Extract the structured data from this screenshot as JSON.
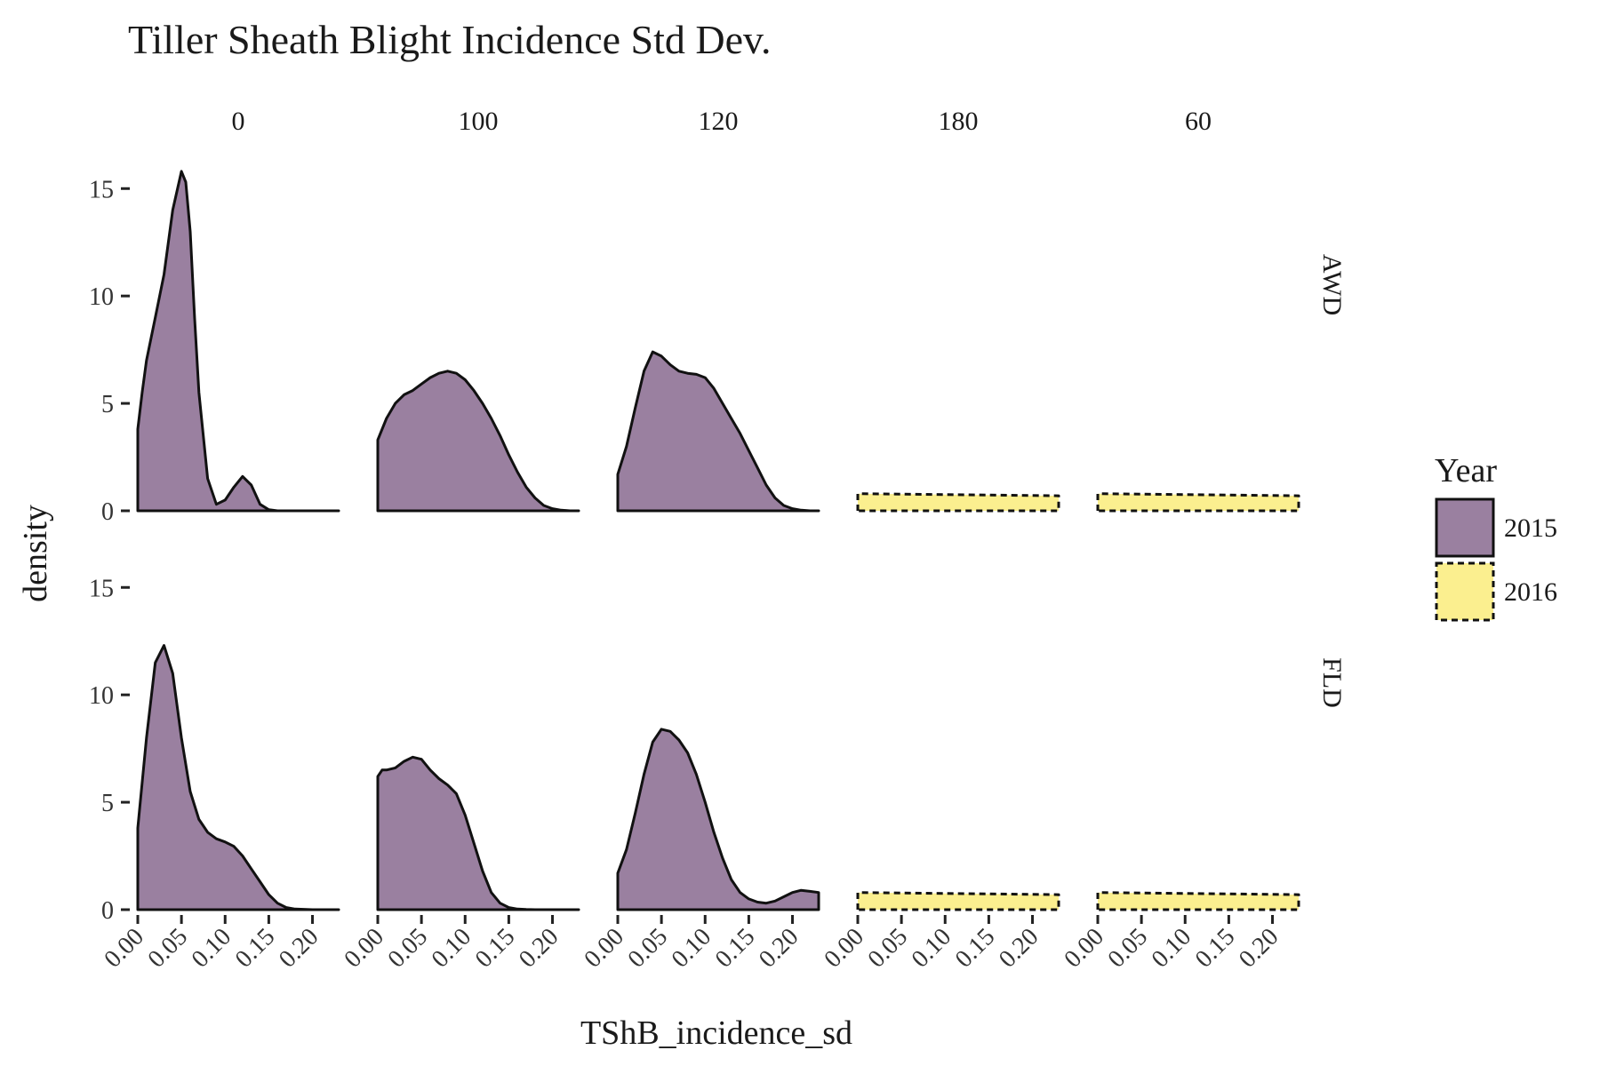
{
  "chart_data": {
    "type": "area",
    "title": "Tiller Sheath Blight Incidence Std Dev.",
    "xlabel": "TShB_incidence_sd",
    "ylabel": "density",
    "columns": [
      "0",
      "100",
      "120",
      "180",
      "60"
    ],
    "rows": [
      "AWD",
      "FLD"
    ],
    "xlim": [
      0,
      0.23
    ],
    "ylim": [
      0,
      16.5
    ],
    "x_ticks": [
      0.0,
      0.05,
      0.1,
      0.15,
      0.2
    ],
    "x_tick_labels": [
      "0.00",
      "0.05",
      "0.10",
      "0.15",
      "0.20"
    ],
    "y_ticks": [
      0,
      5,
      10,
      15
    ],
    "y_tick_labels": [
      "0",
      "5",
      "10",
      "15"
    ],
    "grid": false,
    "legend": {
      "title": "Year",
      "position": "right",
      "entries": [
        {
          "label": "2015",
          "fill": "#9a80a0",
          "stroke": "#111111",
          "dash": "solid"
        },
        {
          "label": "2016",
          "fill": "#fbef8f",
          "stroke": "#111111",
          "dash": "dashed"
        }
      ]
    },
    "panels": [
      {
        "row": "AWD",
        "col": "0",
        "year": "2015",
        "x": [
          0,
          0.005,
          0.01,
          0.02,
          0.03,
          0.04,
          0.05,
          0.055,
          0.06,
          0.065,
          0.07,
          0.08,
          0.09,
          0.1,
          0.11,
          0.12,
          0.13,
          0.14,
          0.15,
          0.16,
          0.18,
          0.2,
          0.23
        ],
        "y": [
          3.8,
          5.5,
          7,
          9,
          11,
          14,
          15.8,
          15.3,
          13,
          9,
          5.5,
          1.5,
          0.3,
          0.5,
          1.1,
          1.6,
          1.2,
          0.3,
          0.05,
          0,
          0,
          0,
          0
        ]
      },
      {
        "row": "AWD",
        "col": "100",
        "year": "2015",
        "x": [
          0,
          0.01,
          0.02,
          0.03,
          0.04,
          0.05,
          0.06,
          0.07,
          0.08,
          0.09,
          0.1,
          0.11,
          0.12,
          0.13,
          0.14,
          0.15,
          0.16,
          0.17,
          0.18,
          0.19,
          0.2,
          0.21,
          0.22,
          0.23
        ],
        "y": [
          3.3,
          4.3,
          5,
          5.4,
          5.6,
          5.9,
          6.2,
          6.4,
          6.5,
          6.4,
          6.1,
          5.6,
          5,
          4.3,
          3.5,
          2.6,
          1.8,
          1.1,
          0.6,
          0.25,
          0.1,
          0.03,
          0,
          0
        ]
      },
      {
        "row": "AWD",
        "col": "120",
        "year": "2015",
        "x": [
          0,
          0.01,
          0.02,
          0.03,
          0.04,
          0.05,
          0.06,
          0.07,
          0.08,
          0.09,
          0.1,
          0.11,
          0.12,
          0.13,
          0.14,
          0.15,
          0.16,
          0.17,
          0.18,
          0.19,
          0.2,
          0.21,
          0.22,
          0.23
        ],
        "y": [
          1.7,
          3,
          4.8,
          6.5,
          7.4,
          7.2,
          6.8,
          6.5,
          6.4,
          6.35,
          6.2,
          5.7,
          5,
          4.3,
          3.6,
          2.8,
          2,
          1.2,
          0.6,
          0.25,
          0.1,
          0.03,
          0,
          0
        ]
      },
      {
        "row": "AWD",
        "col": "180",
        "year": "2016",
        "x": [
          0,
          0.23
        ],
        "y": [
          0.8,
          0.7
        ]
      },
      {
        "row": "AWD",
        "col": "60",
        "year": "2016",
        "x": [
          0,
          0.23
        ],
        "y": [
          0.8,
          0.7
        ]
      },
      {
        "row": "FLD",
        "col": "0",
        "year": "2015",
        "x": [
          0,
          0.01,
          0.02,
          0.03,
          0.04,
          0.05,
          0.06,
          0.07,
          0.08,
          0.09,
          0.1,
          0.11,
          0.12,
          0.13,
          0.14,
          0.15,
          0.16,
          0.17,
          0.18,
          0.2,
          0.23
        ],
        "y": [
          3.8,
          8,
          11.5,
          12.3,
          11,
          8,
          5.5,
          4.2,
          3.6,
          3.3,
          3.15,
          2.95,
          2.5,
          1.9,
          1.3,
          0.7,
          0.3,
          0.1,
          0.03,
          0,
          0
        ]
      },
      {
        "row": "FLD",
        "col": "100",
        "year": "2015",
        "x": [
          0,
          0.005,
          0.01,
          0.02,
          0.03,
          0.04,
          0.05,
          0.06,
          0.07,
          0.08,
          0.09,
          0.1,
          0.11,
          0.12,
          0.13,
          0.14,
          0.15,
          0.16,
          0.17,
          0.18,
          0.2,
          0.23
        ],
        "y": [
          6.2,
          6.5,
          6.5,
          6.6,
          6.9,
          7.1,
          7,
          6.5,
          6.1,
          5.8,
          5.4,
          4.4,
          3.1,
          1.8,
          0.8,
          0.3,
          0.1,
          0.03,
          0.01,
          0,
          0,
          0
        ]
      },
      {
        "row": "FLD",
        "col": "120",
        "year": "2015",
        "x": [
          0,
          0.01,
          0.02,
          0.03,
          0.04,
          0.05,
          0.06,
          0.07,
          0.08,
          0.09,
          0.1,
          0.11,
          0.12,
          0.13,
          0.14,
          0.15,
          0.16,
          0.17,
          0.18,
          0.19,
          0.2,
          0.21,
          0.22,
          0.23
        ],
        "y": [
          1.7,
          2.8,
          4.5,
          6.3,
          7.8,
          8.4,
          8.3,
          7.9,
          7.3,
          6.3,
          5,
          3.6,
          2.4,
          1.4,
          0.8,
          0.5,
          0.35,
          0.3,
          0.4,
          0.6,
          0.8,
          0.9,
          0.85,
          0.8
        ]
      },
      {
        "row": "FLD",
        "col": "180",
        "year": "2016",
        "x": [
          0,
          0.23
        ],
        "y": [
          0.8,
          0.7
        ]
      },
      {
        "row": "FLD",
        "col": "60",
        "year": "2016",
        "x": [
          0,
          0.23
        ],
        "y": [
          0.8,
          0.7
        ]
      }
    ]
  }
}
